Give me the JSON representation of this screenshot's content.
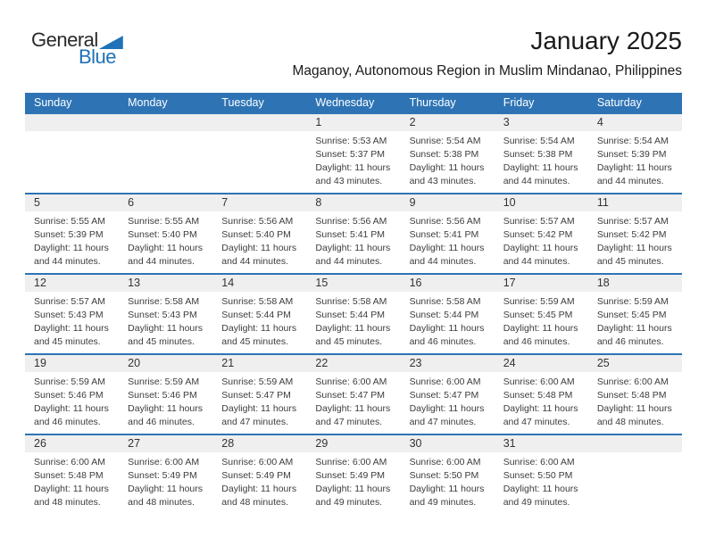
{
  "logo": {
    "general": "General",
    "blue": "Blue"
  },
  "header": {
    "month_title": "January 2025",
    "location": "Maganoy, Autonomous Region in Muslim Mindanao, Philippines"
  },
  "weekdays": [
    "Sunday",
    "Monday",
    "Tuesday",
    "Wednesday",
    "Thursday",
    "Friday",
    "Saturday"
  ],
  "colors": {
    "header_blue": "#2e74b5",
    "row_separator_blue": "#2e74b5",
    "day_strip_gray": "#efefef",
    "logo_blue": "#1f72b8",
    "text_dark": "#333333"
  },
  "weeks": [
    [
      null,
      null,
      null,
      {
        "day": "1",
        "sunrise": "Sunrise: 5:53 AM",
        "sunset": "Sunset: 5:37 PM",
        "daylight1": "Daylight: 11 hours",
        "daylight2": "and 43 minutes."
      },
      {
        "day": "2",
        "sunrise": "Sunrise: 5:54 AM",
        "sunset": "Sunset: 5:38 PM",
        "daylight1": "Daylight: 11 hours",
        "daylight2": "and 43 minutes."
      },
      {
        "day": "3",
        "sunrise": "Sunrise: 5:54 AM",
        "sunset": "Sunset: 5:38 PM",
        "daylight1": "Daylight: 11 hours",
        "daylight2": "and 44 minutes."
      },
      {
        "day": "4",
        "sunrise": "Sunrise: 5:54 AM",
        "sunset": "Sunset: 5:39 PM",
        "daylight1": "Daylight: 11 hours",
        "daylight2": "and 44 minutes."
      }
    ],
    [
      {
        "day": "5",
        "sunrise": "Sunrise: 5:55 AM",
        "sunset": "Sunset: 5:39 PM",
        "daylight1": "Daylight: 11 hours",
        "daylight2": "and 44 minutes."
      },
      {
        "day": "6",
        "sunrise": "Sunrise: 5:55 AM",
        "sunset": "Sunset: 5:40 PM",
        "daylight1": "Daylight: 11 hours",
        "daylight2": "and 44 minutes."
      },
      {
        "day": "7",
        "sunrise": "Sunrise: 5:56 AM",
        "sunset": "Sunset: 5:40 PM",
        "daylight1": "Daylight: 11 hours",
        "daylight2": "and 44 minutes."
      },
      {
        "day": "8",
        "sunrise": "Sunrise: 5:56 AM",
        "sunset": "Sunset: 5:41 PM",
        "daylight1": "Daylight: 11 hours",
        "daylight2": "and 44 minutes."
      },
      {
        "day": "9",
        "sunrise": "Sunrise: 5:56 AM",
        "sunset": "Sunset: 5:41 PM",
        "daylight1": "Daylight: 11 hours",
        "daylight2": "and 44 minutes."
      },
      {
        "day": "10",
        "sunrise": "Sunrise: 5:57 AM",
        "sunset": "Sunset: 5:42 PM",
        "daylight1": "Daylight: 11 hours",
        "daylight2": "and 44 minutes."
      },
      {
        "day": "11",
        "sunrise": "Sunrise: 5:57 AM",
        "sunset": "Sunset: 5:42 PM",
        "daylight1": "Daylight: 11 hours",
        "daylight2": "and 45 minutes."
      }
    ],
    [
      {
        "day": "12",
        "sunrise": "Sunrise: 5:57 AM",
        "sunset": "Sunset: 5:43 PM",
        "daylight1": "Daylight: 11 hours",
        "daylight2": "and 45 minutes."
      },
      {
        "day": "13",
        "sunrise": "Sunrise: 5:58 AM",
        "sunset": "Sunset: 5:43 PM",
        "daylight1": "Daylight: 11 hours",
        "daylight2": "and 45 minutes."
      },
      {
        "day": "14",
        "sunrise": "Sunrise: 5:58 AM",
        "sunset": "Sunset: 5:44 PM",
        "daylight1": "Daylight: 11 hours",
        "daylight2": "and 45 minutes."
      },
      {
        "day": "15",
        "sunrise": "Sunrise: 5:58 AM",
        "sunset": "Sunset: 5:44 PM",
        "daylight1": "Daylight: 11 hours",
        "daylight2": "and 45 minutes."
      },
      {
        "day": "16",
        "sunrise": "Sunrise: 5:58 AM",
        "sunset": "Sunset: 5:44 PM",
        "daylight1": "Daylight: 11 hours",
        "daylight2": "and 46 minutes."
      },
      {
        "day": "17",
        "sunrise": "Sunrise: 5:59 AM",
        "sunset": "Sunset: 5:45 PM",
        "daylight1": "Daylight: 11 hours",
        "daylight2": "and 46 minutes."
      },
      {
        "day": "18",
        "sunrise": "Sunrise: 5:59 AM",
        "sunset": "Sunset: 5:45 PM",
        "daylight1": "Daylight: 11 hours",
        "daylight2": "and 46 minutes."
      }
    ],
    [
      {
        "day": "19",
        "sunrise": "Sunrise: 5:59 AM",
        "sunset": "Sunset: 5:46 PM",
        "daylight1": "Daylight: 11 hours",
        "daylight2": "and 46 minutes."
      },
      {
        "day": "20",
        "sunrise": "Sunrise: 5:59 AM",
        "sunset": "Sunset: 5:46 PM",
        "daylight1": "Daylight: 11 hours",
        "daylight2": "and 46 minutes."
      },
      {
        "day": "21",
        "sunrise": "Sunrise: 5:59 AM",
        "sunset": "Sunset: 5:47 PM",
        "daylight1": "Daylight: 11 hours",
        "daylight2": "and 47 minutes."
      },
      {
        "day": "22",
        "sunrise": "Sunrise: 6:00 AM",
        "sunset": "Sunset: 5:47 PM",
        "daylight1": "Daylight: 11 hours",
        "daylight2": "and 47 minutes."
      },
      {
        "day": "23",
        "sunrise": "Sunrise: 6:00 AM",
        "sunset": "Sunset: 5:47 PM",
        "daylight1": "Daylight: 11 hours",
        "daylight2": "and 47 minutes."
      },
      {
        "day": "24",
        "sunrise": "Sunrise: 6:00 AM",
        "sunset": "Sunset: 5:48 PM",
        "daylight1": "Daylight: 11 hours",
        "daylight2": "and 47 minutes."
      },
      {
        "day": "25",
        "sunrise": "Sunrise: 6:00 AM",
        "sunset": "Sunset: 5:48 PM",
        "daylight1": "Daylight: 11 hours",
        "daylight2": "and 48 minutes."
      }
    ],
    [
      {
        "day": "26",
        "sunrise": "Sunrise: 6:00 AM",
        "sunset": "Sunset: 5:48 PM",
        "daylight1": "Daylight: 11 hours",
        "daylight2": "and 48 minutes."
      },
      {
        "day": "27",
        "sunrise": "Sunrise: 6:00 AM",
        "sunset": "Sunset: 5:49 PM",
        "daylight1": "Daylight: 11 hours",
        "daylight2": "and 48 minutes."
      },
      {
        "day": "28",
        "sunrise": "Sunrise: 6:00 AM",
        "sunset": "Sunset: 5:49 PM",
        "daylight1": "Daylight: 11 hours",
        "daylight2": "and 48 minutes."
      },
      {
        "day": "29",
        "sunrise": "Sunrise: 6:00 AM",
        "sunset": "Sunset: 5:49 PM",
        "daylight1": "Daylight: 11 hours",
        "daylight2": "and 49 minutes."
      },
      {
        "day": "30",
        "sunrise": "Sunrise: 6:00 AM",
        "sunset": "Sunset: 5:50 PM",
        "daylight1": "Daylight: 11 hours",
        "daylight2": "and 49 minutes."
      },
      {
        "day": "31",
        "sunrise": "Sunrise: 6:00 AM",
        "sunset": "Sunset: 5:50 PM",
        "daylight1": "Daylight: 11 hours",
        "daylight2": "and 49 minutes."
      },
      null
    ]
  ]
}
